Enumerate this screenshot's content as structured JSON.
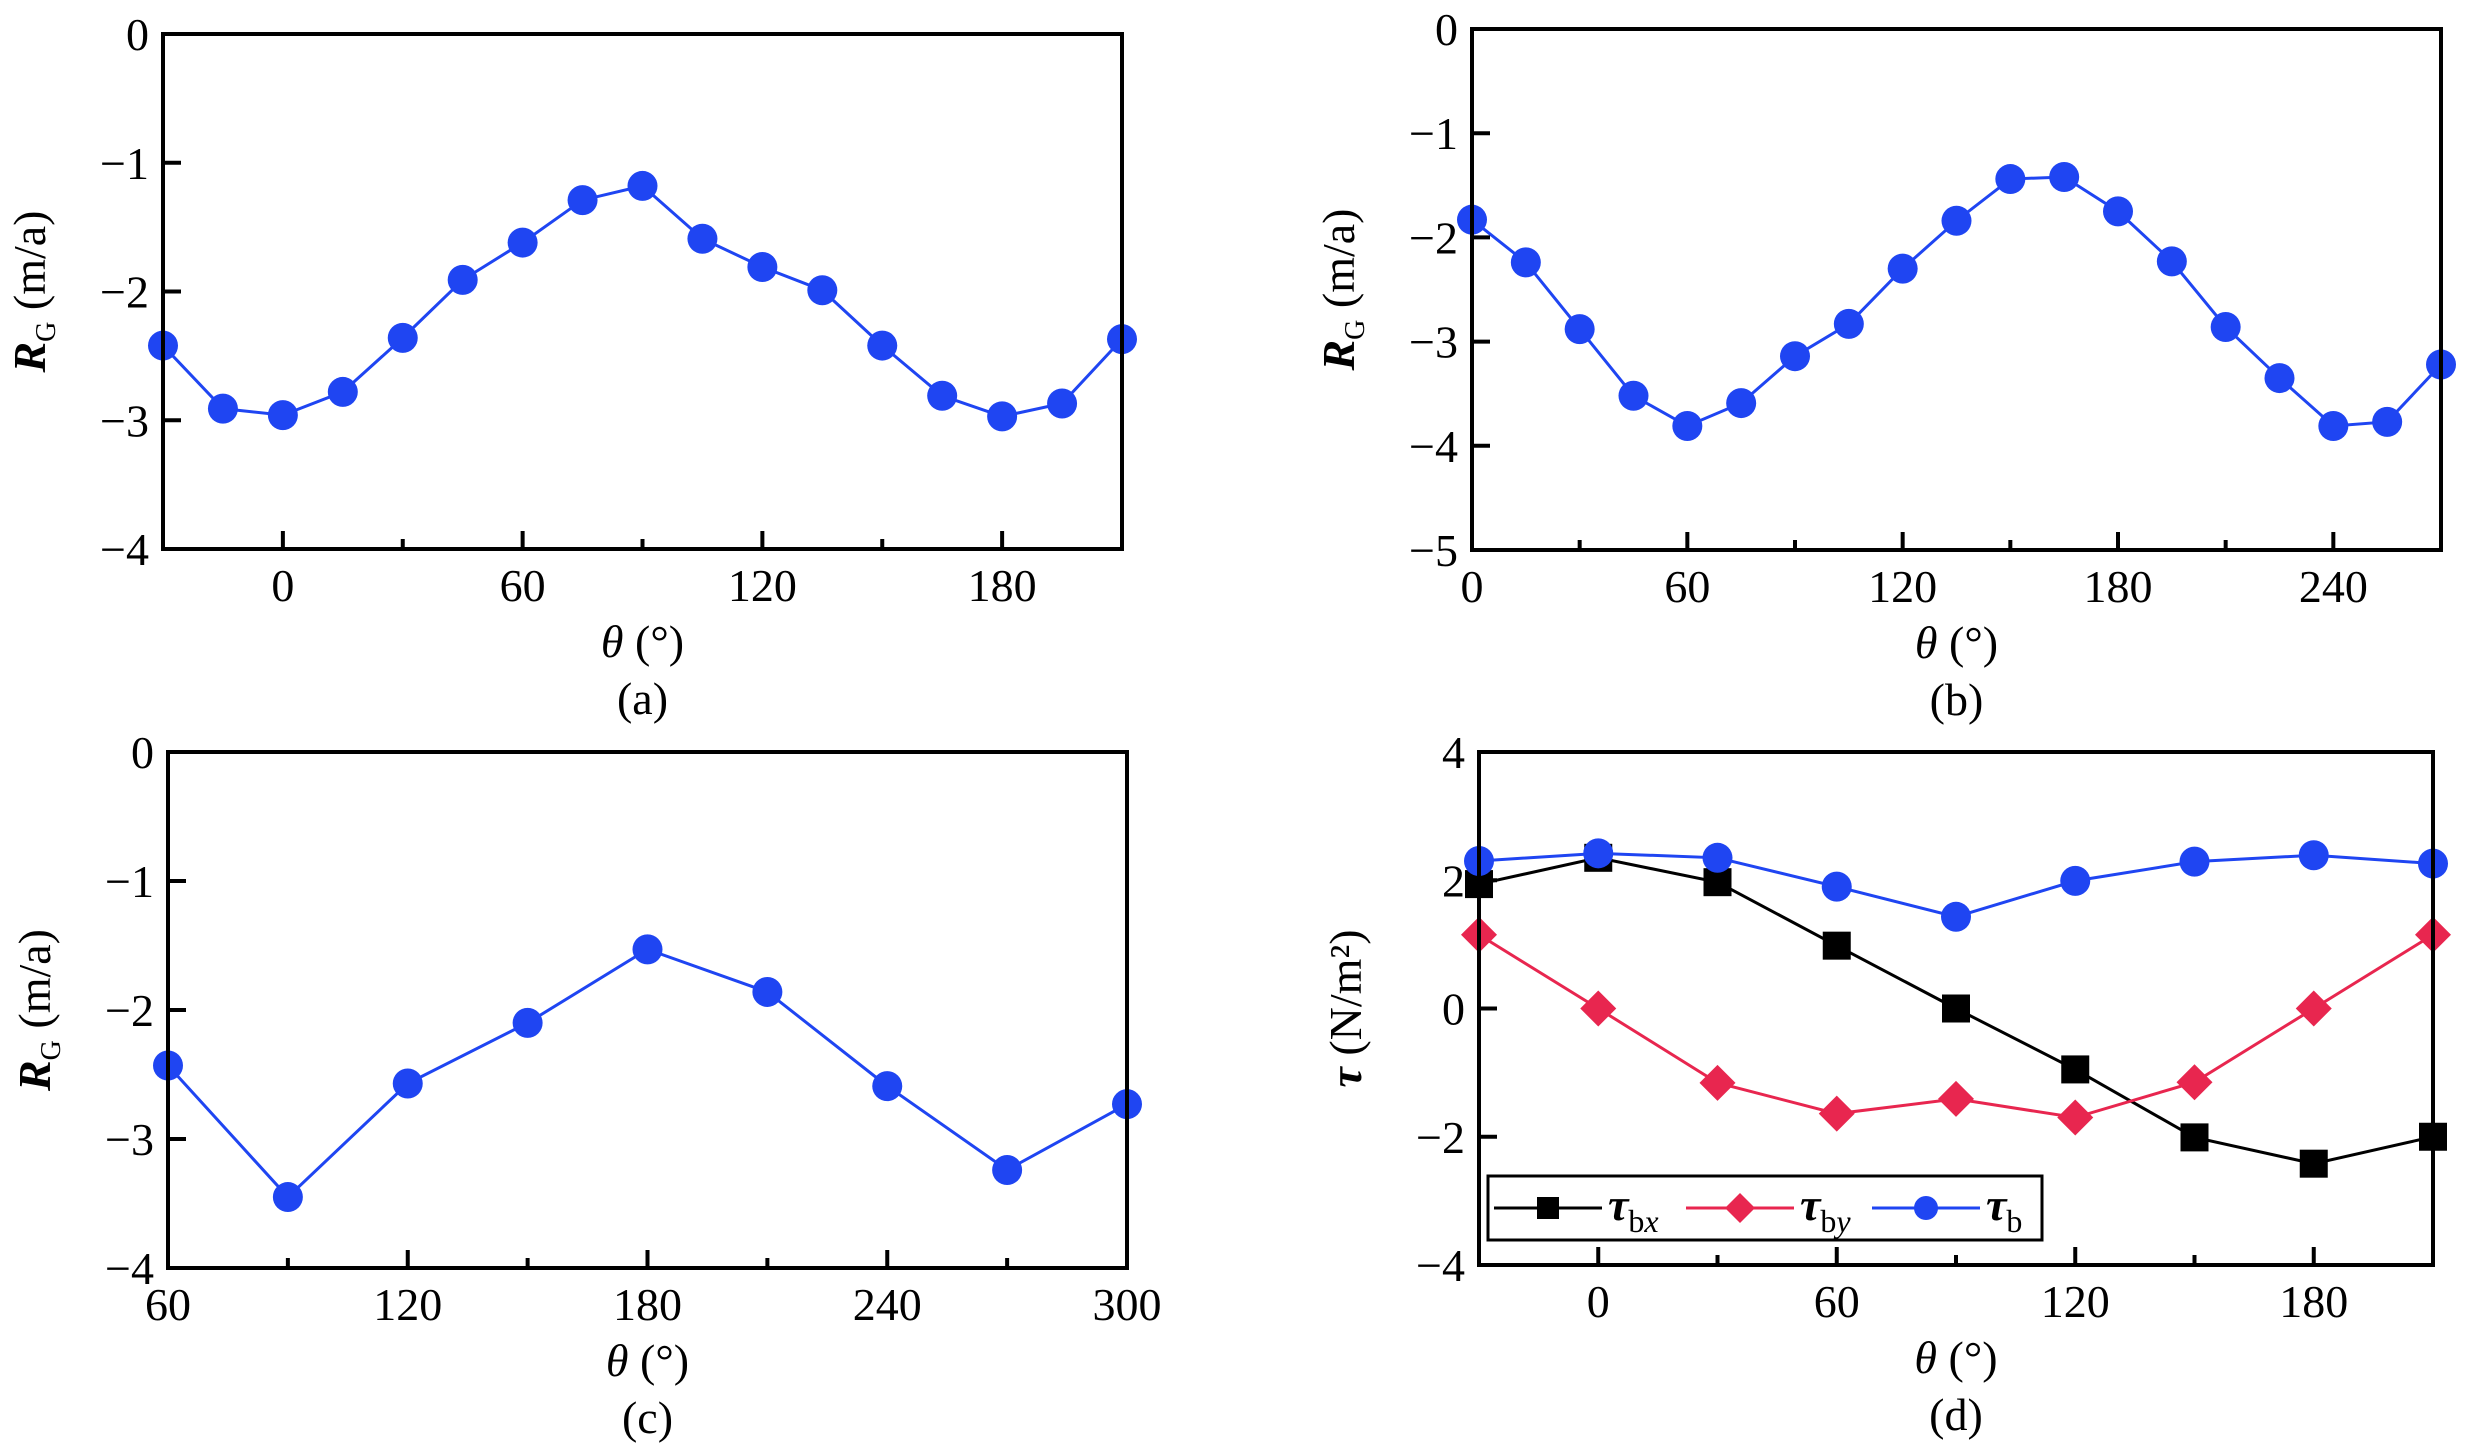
{
  "figure": {
    "panel_labels": [
      "(a)",
      "(b)",
      "(c)",
      "(d)"
    ]
  },
  "colors": {
    "series_blue": "#1f45f2",
    "series_black": "#000000",
    "series_red": "#e8264f",
    "axis": "#000000"
  },
  "chart_data": [
    {
      "id": "a",
      "type": "line",
      "panel_label": "(a)",
      "title": "",
      "xlabel": "θ (°)",
      "ylabel": "R_G (m/a)",
      "ylabel_main": "R",
      "ylabel_sub": "G",
      "ylabel_unit": " (m/a)",
      "xlim": [
        -30,
        210
      ],
      "ylim": [
        -4,
        0
      ],
      "xticks": [
        0,
        60,
        120,
        180
      ],
      "xminor": [
        -30,
        30,
        90,
        150,
        210
      ],
      "yticks": [
        0,
        -1,
        -2,
        -3,
        -4
      ],
      "grid": false,
      "series": [
        {
          "name": "R_G",
          "color": "#1f45f2",
          "marker": "circle",
          "x": [
            -30,
            -15,
            0,
            15,
            30,
            45,
            60,
            75,
            90,
            105,
            120,
            135,
            150,
            165,
            180,
            195,
            210
          ],
          "y": [
            -2.42,
            -2.91,
            -2.96,
            -2.78,
            -2.36,
            -1.91,
            -1.62,
            -1.29,
            -1.18,
            -1.59,
            -1.81,
            -1.99,
            -2.42,
            -2.81,
            -2.97,
            -2.87,
            -2.37
          ]
        }
      ]
    },
    {
      "id": "b",
      "type": "line",
      "panel_label": "(b)",
      "title": "",
      "xlabel": "θ (°)",
      "ylabel": "R_G (m/a)",
      "ylabel_main": "R",
      "ylabel_sub": "G",
      "ylabel_unit": " (m/a)",
      "xlim": [
        0,
        270
      ],
      "ylim": [
        -5,
        0
      ],
      "xticks": [
        0,
        60,
        120,
        180,
        240
      ],
      "xminor": [
        30,
        90,
        150,
        210,
        270
      ],
      "yticks": [
        0,
        -1,
        -2,
        -3,
        -4,
        -5
      ],
      "grid": false,
      "series": [
        {
          "name": "R_G",
          "color": "#1f45f2",
          "marker": "circle",
          "x": [
            0,
            15,
            30,
            45,
            60,
            75,
            90,
            105,
            120,
            135,
            150,
            165,
            180,
            195,
            210,
            225,
            240,
            255,
            270
          ],
          "y": [
            -1.83,
            -2.24,
            -2.88,
            -3.52,
            -3.81,
            -3.59,
            -3.14,
            -2.83,
            -2.3,
            -1.84,
            -1.44,
            -1.42,
            -1.75,
            -2.23,
            -2.86,
            -3.35,
            -3.81,
            -3.77,
            -3.22
          ]
        }
      ]
    },
    {
      "id": "c",
      "type": "line",
      "panel_label": "(c)",
      "title": "",
      "xlabel": "θ (°)",
      "ylabel": "R_G (m/a)",
      "ylabel_main": "R",
      "ylabel_sub": "G",
      "ylabel_unit": " (m/a)",
      "xlim": [
        60,
        300
      ],
      "ylim": [
        -4,
        0
      ],
      "xticks": [
        60,
        120,
        180,
        240,
        300
      ],
      "xminor": [
        90,
        150,
        210,
        270
      ],
      "yticks": [
        0,
        -1,
        -2,
        -3,
        -4
      ],
      "grid": false,
      "series": [
        {
          "name": "R_G",
          "color": "#1f45f2",
          "marker": "circle",
          "x": [
            60,
            90,
            120,
            150,
            180,
            210,
            240,
            270,
            300
          ],
          "y": [
            -2.43,
            -3.45,
            -2.57,
            -2.1,
            -1.53,
            -1.86,
            -2.59,
            -3.24,
            -2.73
          ]
        }
      ]
    },
    {
      "id": "d",
      "type": "line",
      "panel_label": "(d)",
      "title": "",
      "xlabel": "θ (°)",
      "ylabel": "τ (N/m²)",
      "ylabel_main": "τ",
      "ylabel_sub": "",
      "ylabel_unit": " (N/m²)",
      "xlim": [
        -30,
        210
      ],
      "ylim": [
        -4,
        4
      ],
      "xticks": [
        0,
        60,
        120,
        180
      ],
      "xminor": [
        -30,
        30,
        90,
        150,
        210
      ],
      "yticks": [
        4,
        2,
        0,
        -2,
        -4
      ],
      "grid": false,
      "legend_position": "bottom-left",
      "series": [
        {
          "name": "τ_bx",
          "legend_main": "τ",
          "legend_sub": "bx",
          "color": "#000000",
          "marker": "square",
          "x": [
            -30,
            0,
            30,
            60,
            90,
            120,
            150,
            180,
            210
          ],
          "y": [
            1.94,
            2.35,
            1.97,
            0.98,
            0.0,
            -0.95,
            -2.01,
            -2.42,
            -2.0
          ]
        },
        {
          "name": "τ_by",
          "legend_main": "τ",
          "legend_sub": "by",
          "color": "#e8264f",
          "marker": "diamond",
          "x": [
            -30,
            0,
            30,
            60,
            90,
            120,
            150,
            180,
            210
          ],
          "y": [
            1.15,
            0.0,
            -1.16,
            -1.64,
            -1.41,
            -1.7,
            -1.15,
            0.0,
            1.15
          ]
        },
        {
          "name": "τ_b",
          "legend_main": "τ",
          "legend_sub": "b",
          "color": "#1f45f2",
          "marker": "circle",
          "x": [
            -30,
            0,
            30,
            60,
            90,
            120,
            150,
            180,
            210
          ],
          "y": [
            2.3,
            2.42,
            2.35,
            1.9,
            1.43,
            1.99,
            2.29,
            2.39,
            2.26
          ]
        }
      ]
    }
  ]
}
